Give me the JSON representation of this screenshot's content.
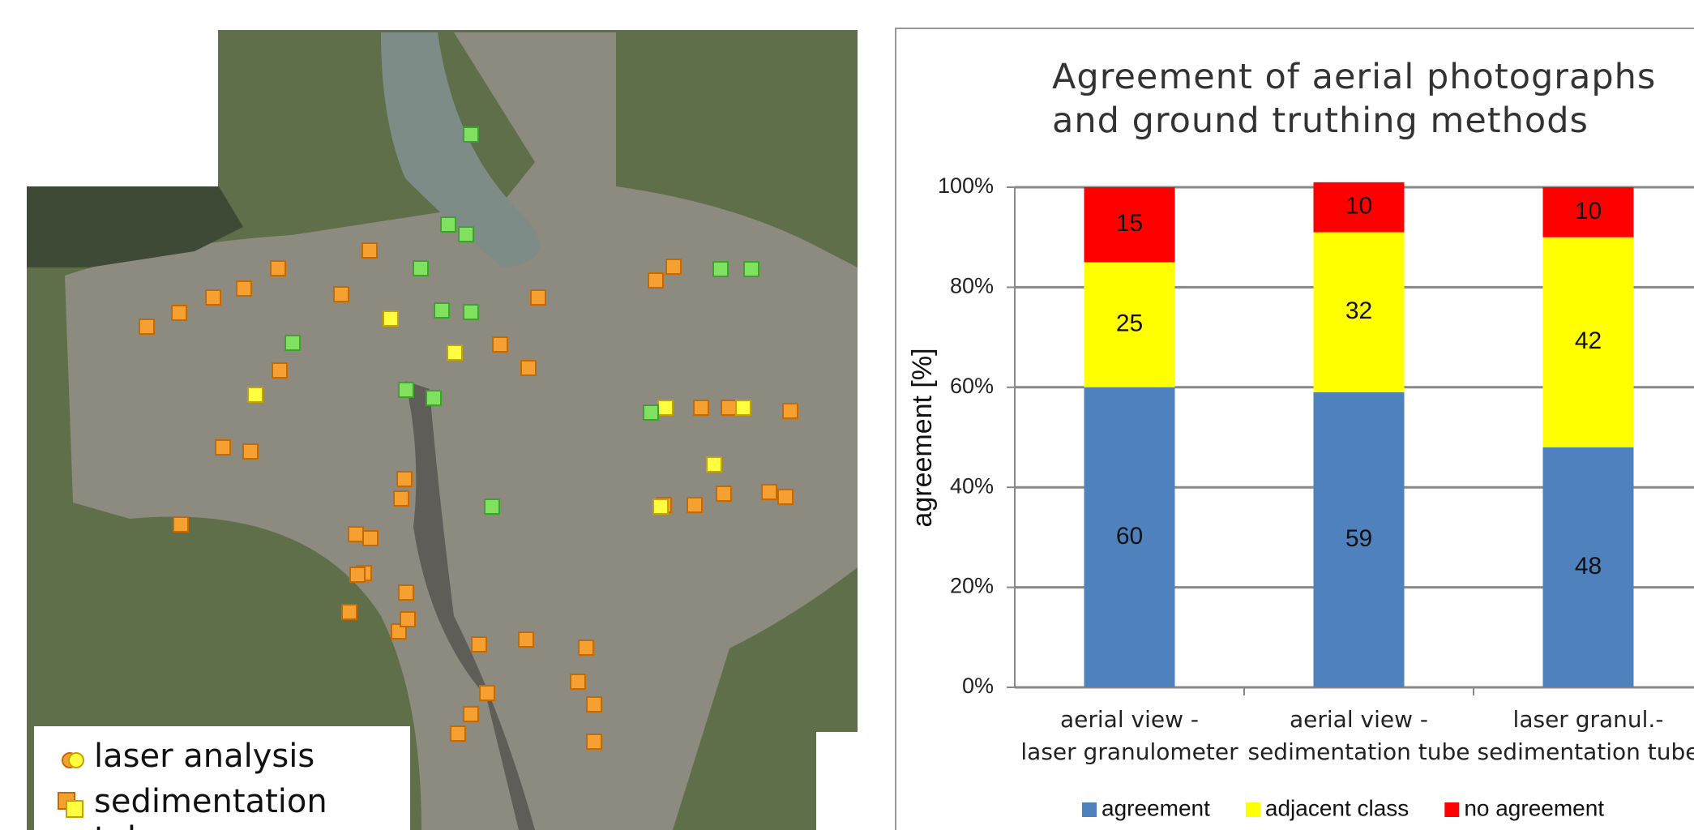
{
  "map": {
    "legend": [
      "laser analysis",
      "sedimentation tube"
    ]
  },
  "chart_data": {
    "type": "bar",
    "stacked": true,
    "title": "Agreement of aerial photographs and ground truthing methods",
    "y_label": "agreement [%]",
    "categories": [
      "aerial view -\nlaser granulometer",
      "aerial view -\nsedimentation tube",
      "laser granul.-\nsedimentation tube"
    ],
    "series": [
      {
        "name": "agreement",
        "color": "#4f81bd",
        "values": [
          60,
          59,
          48
        ]
      },
      {
        "name": "adjacent class",
        "color": "#ffff00",
        "values": [
          25,
          32,
          42
        ]
      },
      {
        "name": "no agreement",
        "color": "#ff0000",
        "values": [
          15,
          10,
          10
        ]
      }
    ],
    "ylim": [
      0,
      100
    ],
    "yticks": [
      {
        "value": 0,
        "label": "0%"
      },
      {
        "value": 20,
        "label": "20%"
      },
      {
        "value": 40,
        "label": "40%"
      },
      {
        "value": 60,
        "label": "60%"
      },
      {
        "value": 80,
        "label": "80%"
      },
      {
        "value": 100,
        "label": "100%"
      }
    ],
    "grid": true,
    "legend": "bottom"
  }
}
